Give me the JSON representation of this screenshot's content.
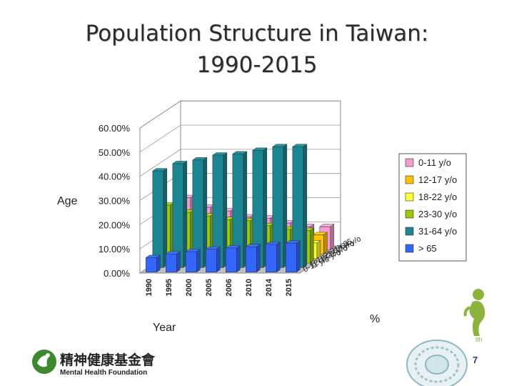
{
  "slide": {
    "title_line1": "Population Structure in Taiwan:",
    "title_line2": "1990-2015",
    "page_number": "7",
    "logo_chinese": "精神健康基金會",
    "logo_english": "Mental Health Foundation",
    "corner_fragment": "lth"
  },
  "colors": {
    "0-11 y/o": "#f59bd0",
    "12-17 y/o": "#ffc000",
    "18-22 y/o": "#ffff33",
    "23-30 y/o": "#99cc00",
    "31-64 y/o": "#1b8591",
    "> 65": "#3366ff",
    "logo_green": "#3d8a2e",
    "page_number": "#1f3e86"
  },
  "chart_data": {
    "type": "bar",
    "subtype": "3d-bar",
    "title": "",
    "xlabel": "Year",
    "ylabel": "Age",
    "zlabel": "%",
    "categories": [
      "1990",
      "1995",
      "2000",
      "2005",
      "2006",
      "2010",
      "2014",
      "2015"
    ],
    "depth_labels": [
      "> 65",
      "31-64 y/o",
      "23-30 y/o",
      "18-22 y/o",
      "12-17 y/o",
      "0-11 y/o"
    ],
    "y_ticks": [
      "0.00%",
      "10.00%",
      "20.00%",
      "30.00%",
      "40.00%",
      "50.00%",
      "60.00%"
    ],
    "ylim": [
      0,
      60
    ],
    "legend_position": "right",
    "grid": true,
    "series": [
      {
        "name": "0-11 y/o",
        "values": [
          21.5,
          17.5,
          16.0,
          13.5,
          13.0,
          11.0,
          9.5,
          9.5
        ]
      },
      {
        "name": "12-17 y/o",
        "values": [
          13.5,
          12.5,
          11.0,
          10.0,
          9.5,
          9.5,
          8.5,
          8.0
        ]
      },
      {
        "name": "18-22 y/o",
        "values": [
          8.0,
          9.0,
          8.5,
          8.0,
          8.0,
          7.5,
          7.0,
          6.5
        ]
      },
      {
        "name": "23-30 y/o",
        "values": [
          24.0,
          21.0,
          19.5,
          18.0,
          17.5,
          15.5,
          14.0,
          13.5
        ]
      },
      {
        "name": "31-64 y/o",
        "values": [
          40.0,
          43.0,
          44.5,
          46.5,
          47.0,
          48.5,
          50.0,
          50.0
        ]
      },
      {
        "name": "> 65",
        "values": [
          6.0,
          7.5,
          8.5,
          9.5,
          10.0,
          10.5,
          11.5,
          12.0
        ]
      }
    ]
  }
}
